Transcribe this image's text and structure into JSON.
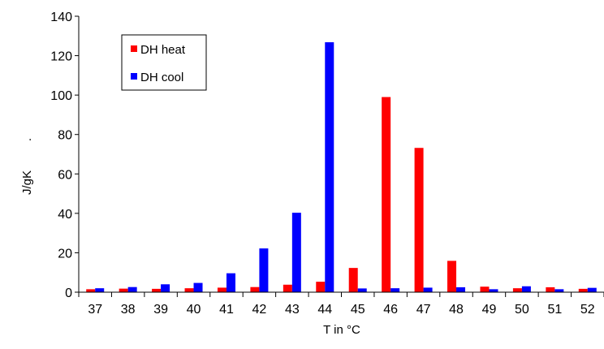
{
  "chart_data": {
    "type": "bar",
    "title": "",
    "xlabel": "T in °C",
    "ylabel": "J/gK",
    "ylabel_extra": ".",
    "ylim": [
      0,
      140
    ],
    "yticks": [
      0,
      20,
      40,
      60,
      80,
      100,
      120,
      140
    ],
    "grid": false,
    "legend_position": "top-left",
    "categories": [
      "37",
      "38",
      "39",
      "40",
      "41",
      "42",
      "43",
      "44",
      "45",
      "46",
      "47",
      "48",
      "49",
      "50",
      "51",
      "52"
    ],
    "series": [
      {
        "name": "DH heat",
        "color": "#ff0000",
        "values": [
          1.5,
          1.8,
          1.7,
          2.0,
          2.3,
          2.6,
          3.8,
          5.3,
          12.3,
          99,
          73.2,
          15.9,
          2.8,
          2.0,
          2.5,
          1.7
        ]
      },
      {
        "name": "DH cool",
        "color": "#0000ff",
        "values": [
          2.0,
          2.6,
          4.0,
          4.7,
          9.6,
          22.2,
          40.3,
          126.8,
          1.9,
          2.0,
          2.3,
          2.5,
          1.5,
          3.0,
          1.5,
          2.2
        ]
      }
    ]
  }
}
